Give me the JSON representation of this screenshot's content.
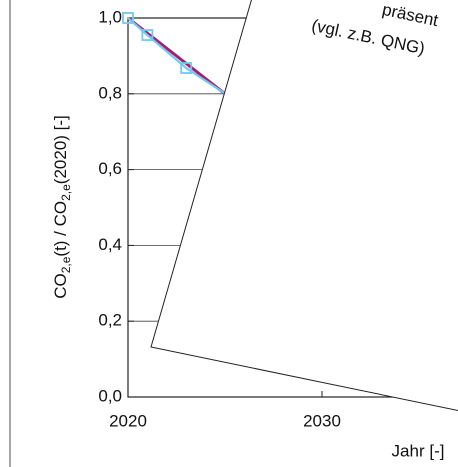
{
  "chart_data": {
    "type": "line",
    "ylabel": [
      "CO",
      "2,e",
      "(t) / CO",
      "2,e",
      "(2020) [-]"
    ],
    "xlabel": "Jahr [-]",
    "series": [
      {
        "color": "#a3206f",
        "x": [
          2020,
          2025
        ],
        "values": [
          1.0,
          0.8
        ]
      },
      {
        "color": "#72c8f2",
        "x": [
          2020,
          2021,
          2023,
          2026.3
        ],
        "values": [
          1.0,
          0.955,
          0.868,
          0.757
        ],
        "marker": "square"
      }
    ],
    "xlim": [
      2020,
      2040
    ],
    "xticks": [
      2020,
      2030
    ],
    "ylim": [
      0,
      1.0
    ],
    "yticks": [
      {
        "value": 0,
        "label": "0,0"
      },
      {
        "value": 0.2,
        "label": "0,2"
      },
      {
        "value": 0.4,
        "label": "0,4"
      },
      {
        "value": 0.6,
        "label": "0,6"
      },
      {
        "value": 0.8,
        "label": "0,8"
      },
      {
        "value": 1.0,
        "label": "1,0"
      }
    ],
    "grid": true
  },
  "note": {
    "lines": [
      "präsent",
      "(vgl. z.B. QNG)"
    ]
  }
}
